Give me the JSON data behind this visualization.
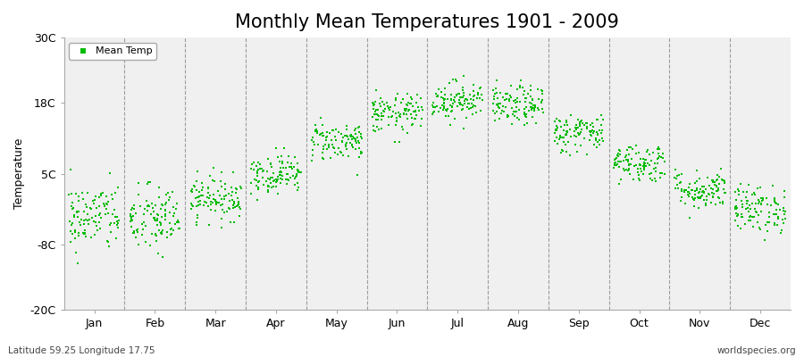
{
  "title": "Monthly Mean Temperatures 1901 - 2009",
  "ylabel": "Temperature",
  "yticks": [
    -20,
    -8,
    5,
    18,
    30
  ],
  "ytick_labels": [
    "-20C",
    "-8C",
    "5C",
    "18C",
    "30C"
  ],
  "ylim": [
    -20,
    30
  ],
  "months": [
    "Jan",
    "Feb",
    "Mar",
    "Apr",
    "May",
    "Jun",
    "Jul",
    "Aug",
    "Sep",
    "Oct",
    "Nov",
    "Dec"
  ],
  "dot_color": "#00BB00",
  "dot_size": 2.5,
  "background_color": "#ffffff",
  "plot_bg_color": "#f0f0f0",
  "legend_label": "Mean Temp",
  "bottom_left": "Latitude 59.25 Longitude 17.75",
  "bottom_right": "worldspecies.org",
  "n_years": 109,
  "monthly_means": [
    -3.0,
    -3.5,
    0.5,
    5.0,
    11.0,
    16.0,
    18.5,
    17.5,
    12.5,
    7.0,
    2.0,
    -1.5
  ],
  "monthly_stds": [
    3.2,
    3.2,
    2.0,
    1.8,
    1.8,
    1.8,
    1.8,
    1.8,
    1.8,
    1.8,
    1.8,
    2.2
  ],
  "title_fontsize": 15,
  "label_fontsize": 9,
  "tick_fontsize": 9
}
